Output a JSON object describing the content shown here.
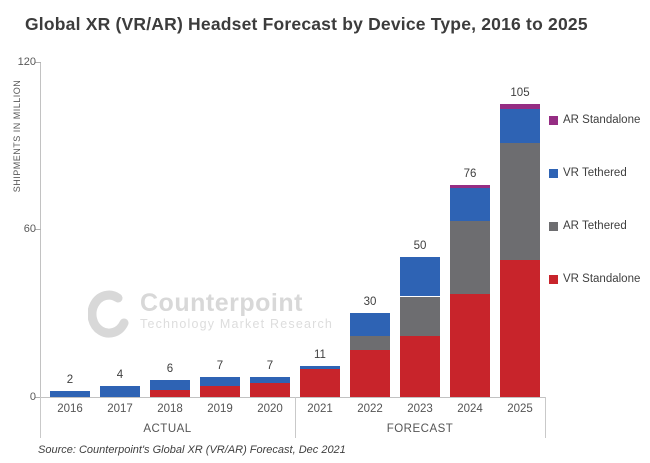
{
  "title": "Global XR (VR/AR) Headset Forecast by Device Type, 2016 to 2025",
  "y_axis": {
    "label": "SHIPMENTS IN MILLION",
    "tick_labels": [
      "120",
      "60",
      "0"
    ]
  },
  "x_axis": {
    "actual_label": "ACTUAL",
    "forecast_label": "FORECAST"
  },
  "legend": [
    {
      "label": "AR Standalone",
      "color": "#952d83"
    },
    {
      "label": "VR Tethered",
      "color": "#2e63b4"
    },
    {
      "label": "AR Tethered",
      "color": "#6d6d70"
    },
    {
      "label": "VR Standalone",
      "color": "#c8242b"
    }
  ],
  "watermark": {
    "brand": "Counterpoint",
    "tagline": "Technology Market Research"
  },
  "source": "Source: Counterpoint's Global XR (VR/AR) Forecast, Dec 2021",
  "chart_data": {
    "type": "bar",
    "stacked": true,
    "stack_order": "bottom_to_top",
    "title": "Global XR (VR/AR) Headset Forecast by Device Type, 2016 to 2025",
    "xlabel": "",
    "ylabel": "SHIPMENTS IN MILLION",
    "ylim": [
      0,
      120
    ],
    "y_ticks": [
      0,
      60,
      120
    ],
    "grid": false,
    "legend_position": "right",
    "categories": [
      "2016",
      "2017",
      "2018",
      "2019",
      "2020",
      "2021",
      "2022",
      "2023",
      "2024",
      "2025"
    ],
    "totals": [
      2,
      4,
      6,
      7,
      7,
      11,
      30,
      50,
      76,
      105
    ],
    "series": [
      {
        "name": "VR Standalone",
        "color": "#c8242b",
        "values": [
          0,
          0,
          2.5,
          4,
          5,
          10,
          17,
          22,
          37,
          49
        ]
      },
      {
        "name": "AR Tethered",
        "color": "#6d6d70",
        "values": [
          0,
          0,
          0,
          0,
          0,
          0,
          5,
          14,
          26,
          42
        ]
      },
      {
        "name": "VR Tethered",
        "color": "#2e63b4",
        "values": [
          2,
          4,
          3.5,
          3,
          2,
          1,
          8,
          14,
          12,
          12
        ]
      },
      {
        "name": "AR Standalone",
        "color": "#952d83",
        "values": [
          0,
          0,
          0,
          0,
          0,
          0,
          0,
          0,
          1,
          2
        ]
      }
    ],
    "groups": [
      {
        "label": "ACTUAL",
        "categories": [
          "2016",
          "2017",
          "2018",
          "2019",
          "2020"
        ]
      },
      {
        "label": "FORECAST",
        "categories": [
          "2021",
          "2022",
          "2023",
          "2024",
          "2025"
        ]
      }
    ]
  }
}
